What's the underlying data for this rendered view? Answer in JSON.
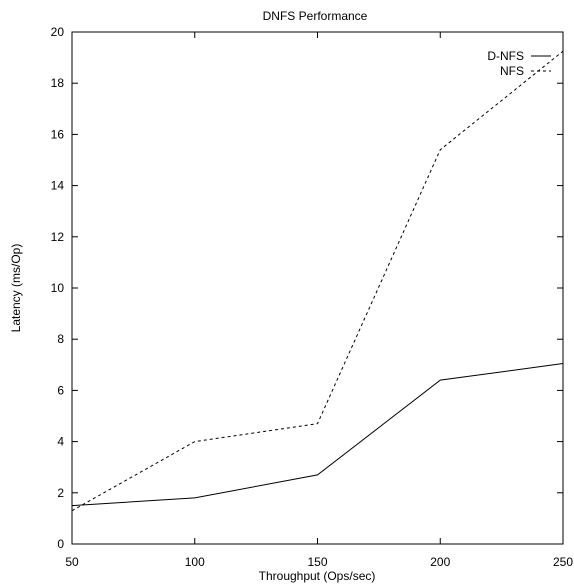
{
  "chart_data": {
    "type": "line",
    "title": "DNFS Performance",
    "xlabel": "Throughput (Ops/sec)",
    "ylabel": "Latency (ms/Op)",
    "x": [
      50,
      100,
      150,
      200,
      250
    ],
    "xlim": [
      50,
      250
    ],
    "ylim": [
      0,
      20
    ],
    "xticks": [
      50,
      100,
      150,
      200,
      250
    ],
    "yticks": [
      0,
      2,
      4,
      6,
      8,
      10,
      12,
      14,
      16,
      18,
      20
    ],
    "grid": false,
    "legend_position": "top-right",
    "series": [
      {
        "name": "D-NFS",
        "style": "solid",
        "color": "#000000",
        "values": [
          1.5,
          1.8,
          2.7,
          6.4,
          7.05
        ]
      },
      {
        "name": "NFS",
        "style": "dashed",
        "color": "#000000",
        "values": [
          1.3,
          4.0,
          4.7,
          15.4,
          19.25
        ]
      }
    ]
  }
}
